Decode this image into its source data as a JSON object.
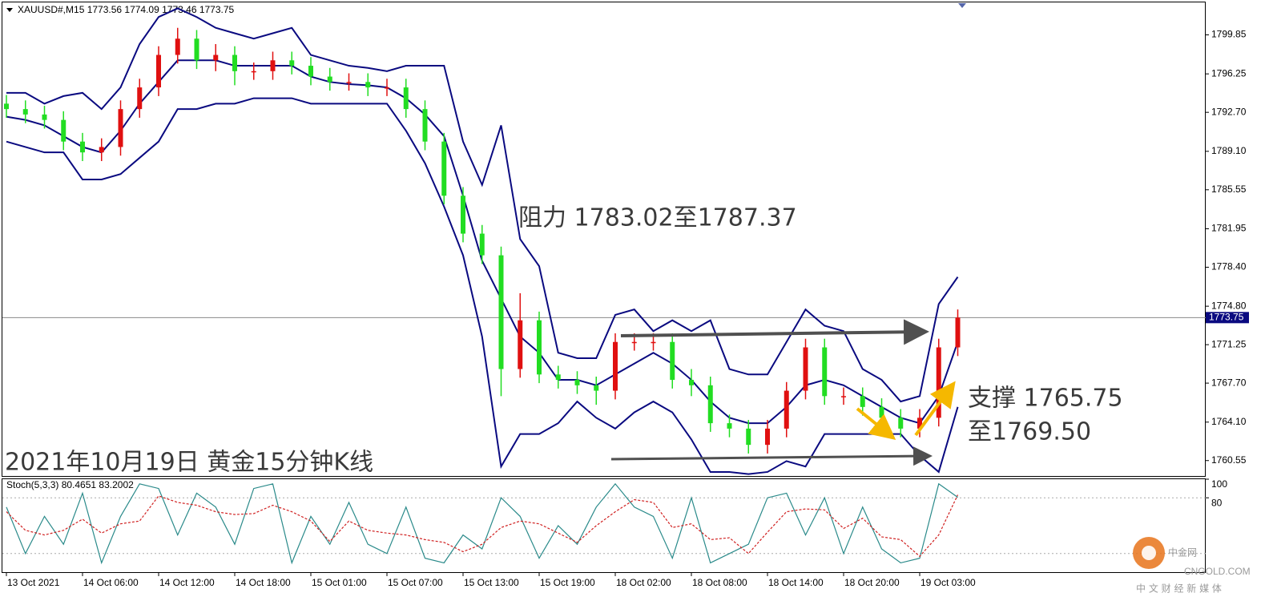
{
  "chart_data": [
    {
      "type": "candlestick",
      "title": "XAUUSD#,M15 1773.56 1774.09 1773.46 1773.75",
      "categories": [
        "13 Oct 2021",
        null,
        null,
        null,
        "14 Oct 06:00",
        null,
        null,
        null,
        "14 Oct 12:00",
        null,
        null,
        null,
        "14 Oct 18:00",
        null,
        null,
        null,
        "15 Oct 01:00",
        null,
        null,
        null,
        "15 Oct 07:00",
        null,
        null,
        null,
        "15 Oct 13:00",
        null,
        null,
        null,
        "15 Oct 19:00",
        null,
        null,
        null,
        "18 Oct 02:00",
        null,
        null,
        null,
        "18 Oct 08:00",
        null,
        null,
        null,
        "18 Oct 14:00",
        null,
        null,
        null,
        "18 Oct 20:00",
        null,
        null,
        null,
        "19 Oct 03:00",
        null,
        null
      ],
      "open": [
        1793.5,
        1793,
        1792.5,
        1792,
        1790,
        1789,
        1789.5,
        1793,
        1795,
        1798,
        1799.5,
        1797.5,
        1798,
        1796.5,
        1796.5,
        1797.5,
        1797,
        1796,
        1795.5,
        1795.5,
        1795,
        1795,
        1793,
        1790,
        1785,
        1781.5,
        1779.5,
        1769,
        1773.5,
        1768.5,
        1768,
        1767.5,
        1767,
        1771.5,
        1771.5,
        1771.5,
        1768,
        1767.5,
        1764,
        1763.5,
        1762,
        1763.5,
        1767,
        1771,
        1766.5,
        1766.5,
        1765.5,
        1764.5,
        1763.5,
        1764.5,
        1771
      ],
      "high": [
        1794.3,
        1793.8,
        1793.3,
        1792.8,
        1790.8,
        1790.3,
        1793.8,
        1795.8,
        1798.8,
        1800.5,
        1800.3,
        1799,
        1798.8,
        1797.3,
        1798.3,
        1798.3,
        1797.8,
        1796.8,
        1796.3,
        1796.3,
        1795.8,
        1795.8,
        1793.8,
        1790.8,
        1785.8,
        1782.3,
        1780.3,
        1776,
        1774.3,
        1769.3,
        1768.8,
        1768.3,
        1772.3,
        1772.3,
        1772.3,
        1772.3,
        1769,
        1768.3,
        1764.8,
        1764.3,
        1764.3,
        1767.8,
        1771.8,
        1771.8,
        1767.3,
        1767.3,
        1766.3,
        1765.3,
        1765.3,
        1771.8,
        1774.5
      ],
      "low": [
        1792.2,
        1791.7,
        1791.2,
        1789.2,
        1788.2,
        1788.2,
        1788.7,
        1792.2,
        1794.2,
        1797.2,
        1796.7,
        1796.5,
        1795.2,
        1795.7,
        1795.7,
        1796.2,
        1795.2,
        1794.7,
        1794.7,
        1794.2,
        1794.2,
        1792.2,
        1789.2,
        1784.2,
        1780.7,
        1778.7,
        1766.5,
        1768.2,
        1767.7,
        1767.2,
        1766.7,
        1765.7,
        1766.2,
        1770.7,
        1770.7,
        1767.2,
        1766.5,
        1763.2,
        1762.7,
        1761.2,
        1761.2,
        1762.7,
        1766.2,
        1765.7,
        1765.7,
        1764.7,
        1763.7,
        1762.7,
        1762.7,
        1763.7,
        1770.2
      ],
      "close": [
        1793,
        1792.5,
        1792,
        1790,
        1789,
        1789.5,
        1793,
        1795,
        1798,
        1799.5,
        1797.5,
        1798,
        1796.5,
        1796.5,
        1797.5,
        1797,
        1796,
        1795.5,
        1795.5,
        1795,
        1795,
        1793,
        1790,
        1785,
        1781.5,
        1779.5,
        1769,
        1773.5,
        1768.5,
        1768,
        1767.5,
        1767,
        1771.5,
        1771.5,
        1771.5,
        1768,
        1767.5,
        1764,
        1763.5,
        1762,
        1763.5,
        1767,
        1771,
        1766.5,
        1766.5,
        1765.5,
        1764.5,
        1763.5,
        1764.5,
        1771,
        1773.75
      ],
      "up_color": "#e01010",
      "down_color": "#22dd22",
      "bands": [
        {
          "color": "#0a0a80",
          "values": [
            1794.5,
            1794.5,
            1793.5,
            1794.2,
            1794.5,
            1793,
            1795,
            1799,
            1801.5,
            1802.3,
            1801.5,
            1800.5,
            1800,
            1799.5,
            1800,
            1800.5,
            1798,
            1797.5,
            1797,
            1796.8,
            1796.5,
            1797,
            1797,
            1797,
            1790,
            1786,
            1791.5,
            1781,
            1778.5,
            1770.5,
            1770,
            1770,
            1774,
            1774.5,
            1772.5,
            1773.5,
            1772.5,
            1773.5,
            1769,
            1768.5,
            1768.5,
            1771.5,
            1774.5,
            1773,
            1772.5,
            1769,
            1768,
            1766,
            1766.5,
            1775,
            1777.5
          ]
        },
        {
          "color": "#0a0a80",
          "values": [
            1792.3,
            1792,
            1791.5,
            1790.5,
            1789.5,
            1789,
            1791,
            1793.5,
            1795.5,
            1797.5,
            1797.5,
            1797.5,
            1797,
            1797,
            1797,
            1797,
            1796,
            1795.5,
            1795.3,
            1795.2,
            1795,
            1794,
            1792.5,
            1790.5,
            1785,
            1779,
            1775.5,
            1772,
            1770.5,
            1768,
            1768,
            1767.5,
            1768.5,
            1769.5,
            1770.5,
            1769.5,
            1768,
            1766,
            1764.5,
            1764,
            1764,
            1765.5,
            1767.5,
            1768,
            1767.5,
            1766.5,
            1765.5,
            1764.5,
            1764,
            1766.5,
            1771.5
          ]
        },
        {
          "color": "#0a0a80",
          "values": [
            1790,
            1789.5,
            1789,
            1789,
            1786.5,
            1786.5,
            1787,
            1788.5,
            1790,
            1793,
            1793,
            1793.5,
            1793.5,
            1794,
            1794,
            1794,
            1793.5,
            1793.5,
            1793.5,
            1793.5,
            1793.5,
            1791,
            1788,
            1784,
            1779.5,
            1772,
            1760,
            1763,
            1763,
            1764,
            1766,
            1764.5,
            1763.5,
            1765,
            1766,
            1765,
            1762.5,
            1759.5,
            1759.5,
            1759.3,
            1759.5,
            1760.5,
            1760,
            1763,
            1763,
            1763,
            1763,
            1763,
            1761,
            1759.5,
            1765.5
          ]
        }
      ],
      "ylim": [
        1759.2,
        1802.7
      ],
      "yticks": [
        {
          "value": 1760.55,
          "label": "1760.55"
        },
        {
          "value": 1764.1,
          "label": "1764.10"
        },
        {
          "value": 1767.7,
          "label": "1767.70"
        },
        {
          "value": 1771.25,
          "label": "1771.25"
        },
        {
          "value": 1774.8,
          "label": "1774.80"
        },
        {
          "value": 1778.4,
          "label": "1778.40"
        },
        {
          "value": 1781.95,
          "label": "1781.95"
        },
        {
          "value": 1785.55,
          "label": "1785.55"
        },
        {
          "value": 1789.1,
          "label": "1789.10"
        },
        {
          "value": 1792.7,
          "label": "1792.70"
        },
        {
          "value": 1796.25,
          "label": "1796.25"
        },
        {
          "value": 1799.85,
          "label": "1799.85"
        }
      ],
      "current_price": 1773.75,
      "annotations": [
        "阻力 1783.02至1787.37",
        "支撑 1765.75",
        "至1769.50",
        "2021年10月19日 黄金15分钟K线"
      ]
    },
    {
      "type": "line",
      "title": "Stoch(5,3,3) 80.4651 83.2002",
      "series": [
        {
          "color": "#2a8a8a",
          "values": [
            70,
            20,
            60,
            30,
            85,
            10,
            60,
            95,
            90,
            40,
            85,
            70,
            30,
            90,
            95,
            10,
            60,
            30,
            75,
            30,
            20,
            70,
            15,
            10,
            40,
            25,
            80,
            60,
            15,
            50,
            30,
            70,
            95,
            70,
            60,
            15,
            80,
            10,
            20,
            30,
            80,
            85,
            40,
            80,
            20,
            70,
            25,
            10,
            15,
            95,
            80.4651
          ]
        },
        {
          "color": "#d02020",
          "dashed": true,
          "values": [
            65,
            45,
            40,
            45,
            57,
            42,
            52,
            55,
            82,
            75,
            72,
            65,
            62,
            63,
            72,
            65,
            55,
            33,
            55,
            45,
            42,
            40,
            35,
            32,
            22,
            30,
            48,
            55,
            52,
            42,
            32,
            50,
            65,
            78,
            75,
            48,
            52,
            35,
            37,
            20,
            43,
            65,
            68,
            67,
            47,
            58,
            38,
            35,
            17,
            40,
            83.2002
          ]
        }
      ],
      "ylim": [
        0,
        100
      ],
      "yticks": [
        100,
        80
      ],
      "levels": [
        80,
        20
      ]
    }
  ],
  "watermark": {
    "name": "中金网",
    "site": "CNGOLD.COM",
    "tagline": "中 文 财 经 新 媒 体"
  }
}
